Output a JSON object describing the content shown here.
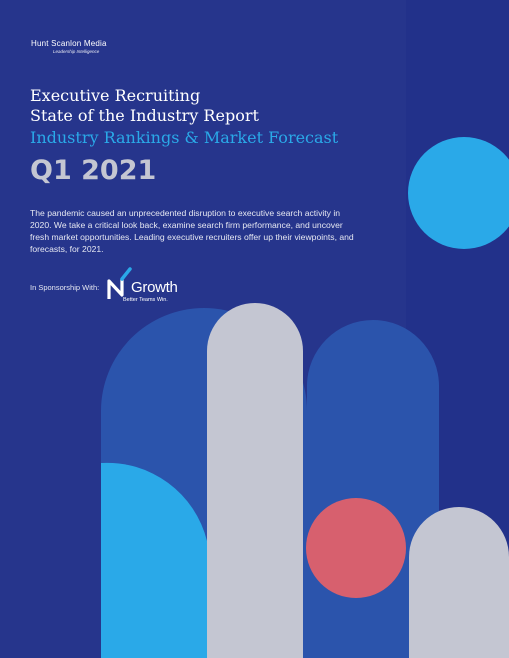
{
  "header": {
    "publisher_logo": "Hunt Scanlon Media",
    "publisher_tagline": "Leadership Intelligence"
  },
  "cover": {
    "title_line1": "Executive Recruiting",
    "title_line2": "State of the Industry Report",
    "subtitle": "Industry Rankings & Market Forecast",
    "quarter": "Q1 2021",
    "description": "The pandemic caused an unprecedented disruption to executive search activity in 2020. We take a critical look back, examine search firm performance, and uncover fresh market opportunities. Leading executive recruiters offer up their viewpoints, and forecasts, for 2021."
  },
  "sponsor": {
    "label": "In Sponsorship With:",
    "logo_name": "NGrowth",
    "logo_word": "Growth",
    "logo_tagline": "Better Teams Win."
  },
  "colors": {
    "background": "#26358c",
    "stripe": "#22318a",
    "accent_blue": "#2aa9e8",
    "silver": "#c4c6d2",
    "navy_shape": "#2b54ac",
    "coral": "#d7606e"
  }
}
